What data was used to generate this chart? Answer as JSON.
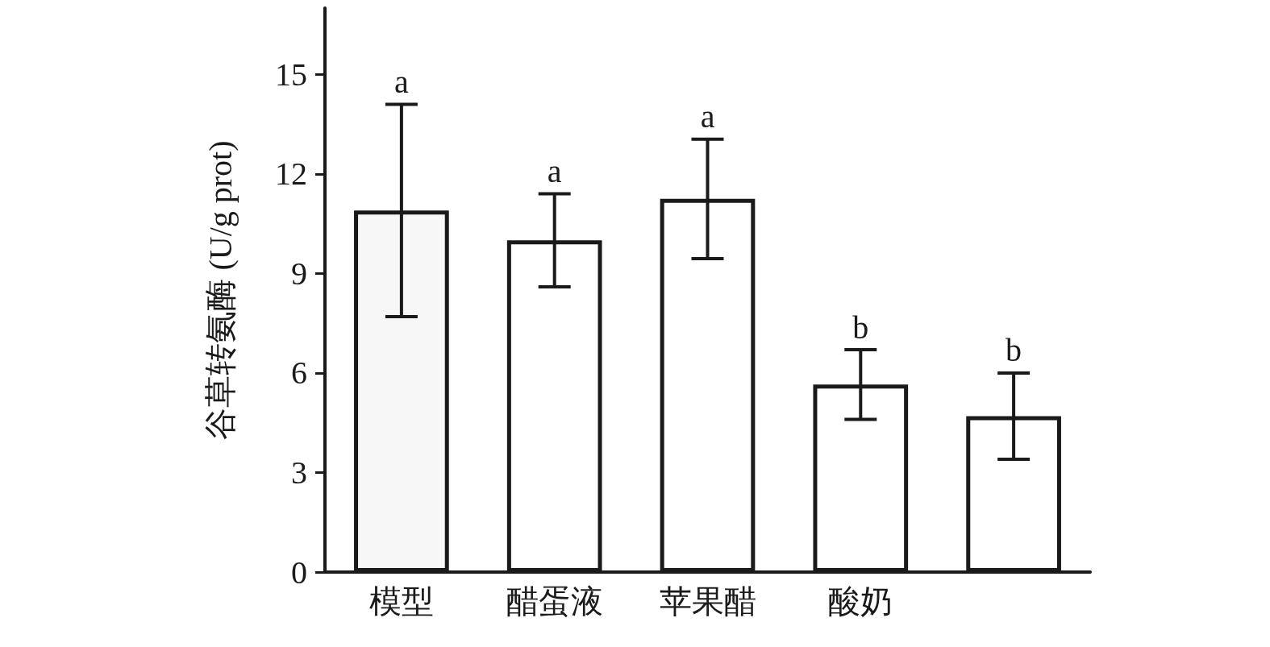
{
  "chart_data": {
    "type": "bar",
    "ylabel": "谷草转氨酶 (U/g prot)",
    "categories": [
      "模型",
      "醋蛋液",
      "苹果醋",
      "酸奶",
      null
    ],
    "values": [
      10.9,
      10.0,
      11.25,
      5.65,
      4.7
    ],
    "errors": [
      3.2,
      1.4,
      1.8,
      1.05,
      1.3
    ],
    "colors": [
      "#f7f7f7",
      "#ffffff",
      "#ffffff",
      "#ffffff",
      "#ffffff"
    ],
    "ylim": [
      0,
      17
    ],
    "yticks": [
      0,
      3,
      6,
      9,
      12,
      15
    ],
    "grid": false,
    "annotations": [
      {
        "text": "a",
        "x": "模型",
        "y": 14.1
      },
      {
        "text": "a",
        "x": "醋蛋液",
        "y": 11.4
      },
      {
        "text": "a",
        "x": "苹果醋",
        "y": 13.05
      },
      {
        "text": "b",
        "x": "酸奶",
        "y": 6.7
      },
      {
        "text": "b",
        "y": 6.0
      }
    ]
  }
}
